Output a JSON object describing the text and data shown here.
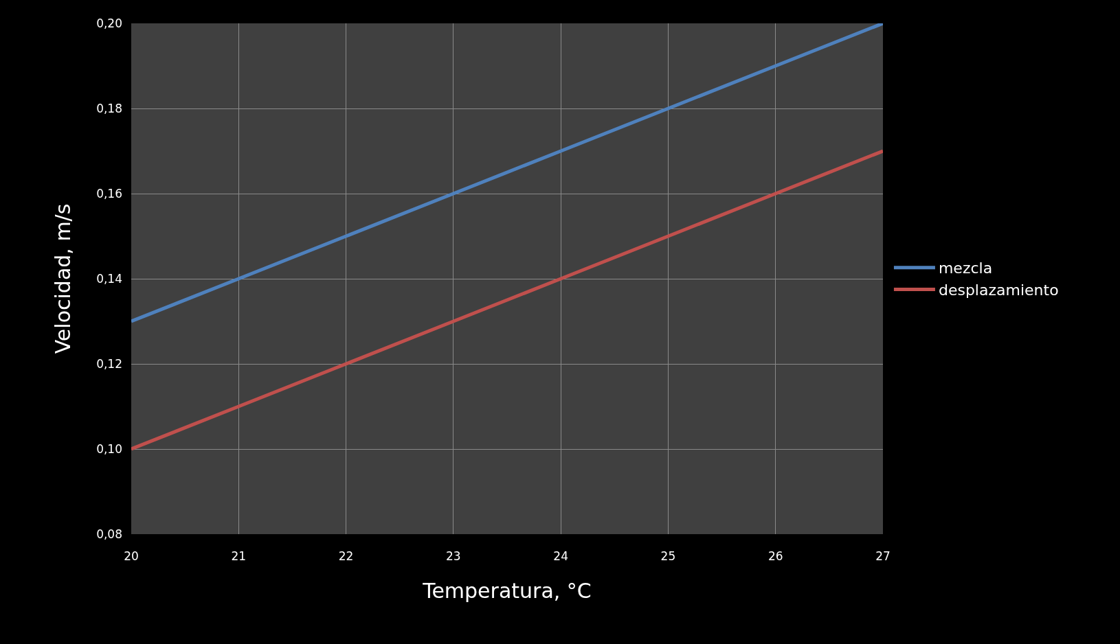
{
  "chart_data": {
    "type": "line",
    "xlabel": "Temperatura, °C",
    "ylabel": "Velocidad, m/s",
    "x": [
      20,
      21,
      22,
      23,
      24,
      25,
      26,
      27
    ],
    "series": [
      {
        "name": "mezcla",
        "color": "#4f81bd",
        "values": [
          0.13,
          0.14,
          0.15,
          0.16,
          0.17,
          0.18,
          0.19,
          0.2
        ]
      },
      {
        "name": "desplazamiento",
        "color": "#c0504d",
        "values": [
          0.1,
          0.11,
          0.12,
          0.13,
          0.14,
          0.15,
          0.16,
          0.17
        ]
      }
    ],
    "xlim": [
      20,
      27
    ],
    "xticks": [
      20,
      21,
      22,
      23,
      24,
      25,
      26,
      27
    ],
    "ylim": [
      0.08,
      0.2
    ],
    "yticks": [
      {
        "value": 0.08,
        "label": "0,08"
      },
      {
        "value": 0.1,
        "label": "0,10"
      },
      {
        "value": 0.12,
        "label": "0,12"
      },
      {
        "value": 0.14,
        "label": "0,14"
      },
      {
        "value": 0.16,
        "label": "0,16"
      },
      {
        "value": 0.18,
        "label": "0,18"
      },
      {
        "value": 0.2,
        "label": "0,20"
      }
    ],
    "grid": true,
    "legend": "right",
    "marker": "none",
    "line_style": "solid"
  }
}
